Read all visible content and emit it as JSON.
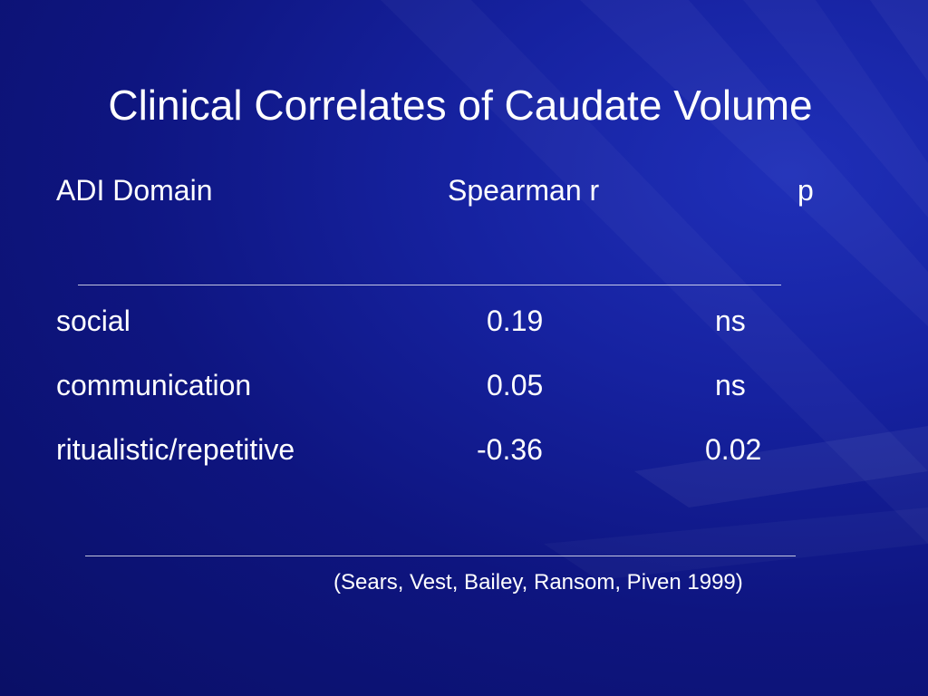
{
  "slide": {
    "title": "Clinical Correlates of Caudate Volume",
    "table": {
      "headers": [
        "ADI Domain",
        "Spearman r",
        "p"
      ],
      "rows": [
        {
          "domain": "social",
          "r": "0.19",
          "p": "ns"
        },
        {
          "domain": "communication",
          "r": "0.05",
          "p": "ns"
        },
        {
          "domain": "ritualistic/repetitive",
          "r": "-0.36",
          "p": "0.02"
        }
      ]
    },
    "citation": "(Sears, Vest, Bailey, Ransom, Piven 1999)"
  },
  "colors": {
    "background": "#0e1580",
    "text": "#ffffff"
  }
}
